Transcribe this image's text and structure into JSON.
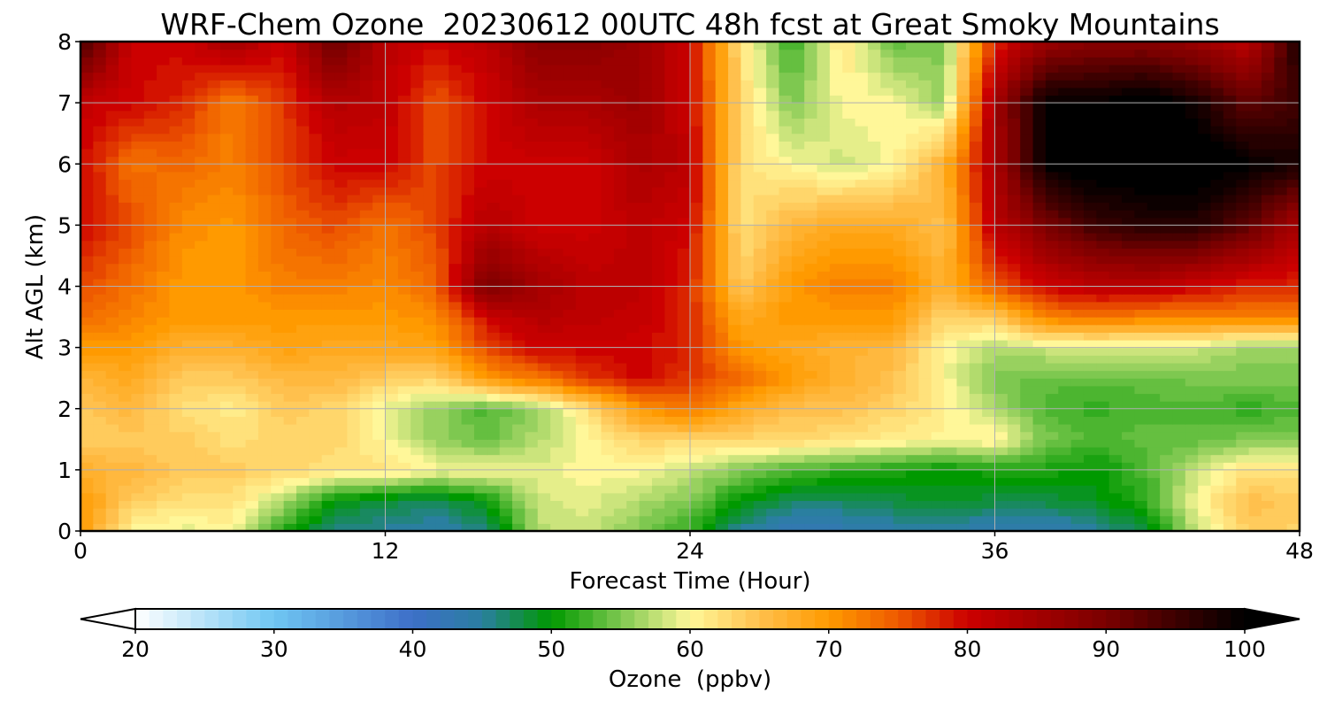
{
  "chart_data": {
    "type": "heatmap",
    "title": "WRF-Chem Ozone  20230612 00UTC 48h fcst at Great Smoky Mountains",
    "xlabel": "Forecast Time (Hour)",
    "ylabel": "Alt AGL (km)",
    "xlim": [
      0,
      48
    ],
    "ylim": [
      0,
      8
    ],
    "x_ticks": [
      "0",
      "12",
      "24",
      "36",
      "48"
    ],
    "y_ticks": [
      "0",
      "1",
      "2",
      "3",
      "4",
      "5",
      "6",
      "7",
      "8"
    ],
    "grid": true,
    "colorbar": {
      "label": "Ozone  (ppbv)",
      "range": [
        20,
        100
      ],
      "extend": "both",
      "ticks": [
        "20",
        "30",
        "40",
        "50",
        "60",
        "70",
        "80",
        "90",
        "100"
      ],
      "color_stops": [
        {
          "value": 20,
          "color": "#ffffff"
        },
        {
          "value": 30,
          "color": "#6fc6f2"
        },
        {
          "value": 40,
          "color": "#3d6fc8"
        },
        {
          "value": 45,
          "color": "#2a7fa0"
        },
        {
          "value": 50,
          "color": "#009900"
        },
        {
          "value": 55,
          "color": "#7ec850"
        },
        {
          "value": 60,
          "color": "#fff799"
        },
        {
          "value": 65,
          "color": "#ffc04d"
        },
        {
          "value": 70,
          "color": "#ff9a00"
        },
        {
          "value": 75,
          "color": "#ee5a00"
        },
        {
          "value": 80,
          "color": "#cc0000"
        },
        {
          "value": 90,
          "color": "#7a0000"
        },
        {
          "value": 100,
          "color": "#000000"
        }
      ]
    },
    "x_hours": [
      0,
      2,
      4,
      6,
      8,
      10,
      12,
      14,
      16,
      18,
      20,
      22,
      24,
      26,
      28,
      30,
      32,
      34,
      36,
      38,
      40,
      42,
      44,
      46,
      48
    ],
    "y_km": [
      0,
      0.5,
      1,
      1.5,
      2,
      2.5,
      3,
      3.5,
      4,
      5,
      6,
      7,
      8
    ],
    "z_ppbv": [
      [
        70,
        60,
        59,
        60,
        51,
        46,
        45,
        44,
        46,
        57,
        58,
        55,
        52,
        45,
        42,
        43,
        44,
        45,
        43,
        43,
        45,
        48,
        58,
        64,
        63
      ],
      [
        70,
        64,
        62,
        62,
        57,
        50,
        48,
        47,
        50,
        58,
        59,
        57,
        55,
        50,
        47,
        47,
        48,
        49,
        48,
        48,
        49,
        52,
        60,
        65,
        64
      ],
      [
        67,
        66,
        64,
        64,
        63,
        62,
        62,
        60,
        60,
        59,
        60,
        60,
        58,
        55,
        53,
        52,
        51,
        50,
        51,
        51,
        50,
        53,
        58,
        62,
        62
      ],
      [
        64,
        64,
        64,
        62,
        63,
        63,
        60,
        56,
        54,
        57,
        60,
        63,
        63,
        63,
        63,
        62,
        61,
        60,
        61,
        55,
        53,
        54,
        54,
        55,
        55
      ],
      [
        64,
        66,
        62,
        61,
        64,
        63,
        59,
        56,
        53,
        56,
        62,
        70,
        73,
        68,
        65,
        65,
        63,
        61,
        57,
        53,
        52,
        53,
        53,
        52,
        53
      ],
      [
        66,
        68,
        64,
        64,
        66,
        66,
        64,
        63,
        70,
        73,
        77,
        80,
        77,
        74,
        70,
        67,
        65,
        60,
        55,
        54,
        54,
        54,
        55,
        55,
        55
      ],
      [
        70,
        70,
        67,
        67,
        69,
        68,
        68,
        69,
        76,
        80,
        80,
        80,
        78,
        70,
        68,
        67,
        66,
        60,
        57,
        58,
        58,
        58,
        58,
        56,
        56
      ],
      [
        74,
        72,
        70,
        70,
        70,
        70,
        70,
        71,
        80,
        83,
        82,
        81,
        78,
        68,
        70,
        70,
        70,
        63,
        64,
        72,
        73,
        72,
        72,
        72,
        72
      ],
      [
        76,
        73,
        70,
        70,
        72,
        72,
        71,
        74,
        90,
        85,
        82,
        82,
        78,
        64,
        70,
        72,
        72,
        67,
        75,
        80,
        82,
        82,
        80,
        78,
        78
      ],
      [
        80,
        76,
        71,
        70,
        74,
        76,
        73,
        76,
        83,
        80,
        80,
        82,
        80,
        62,
        66,
        68,
        68,
        65,
        82,
        90,
        95,
        97,
        97,
        92,
        84
      ],
      [
        80,
        73,
        74,
        72,
        76,
        80,
        80,
        76,
        80,
        80,
        80,
        84,
        82,
        62,
        60,
        58,
        60,
        67,
        84,
        100,
        102,
        102,
        102,
        100,
        98
      ],
      [
        81,
        80,
        78,
        72,
        77,
        83,
        82,
        75,
        80,
        84,
        84,
        86,
        80,
        63,
        55,
        60,
        60,
        56,
        85,
        100,
        100,
        102,
        98,
        92,
        95
      ],
      [
        95,
        80,
        80,
        85,
        80,
        92,
        82,
        80,
        82,
        88,
        88,
        86,
        80,
        62,
        52,
        62,
        54,
        55,
        78,
        86,
        88,
        88,
        86,
        82,
        98
      ]
    ]
  }
}
